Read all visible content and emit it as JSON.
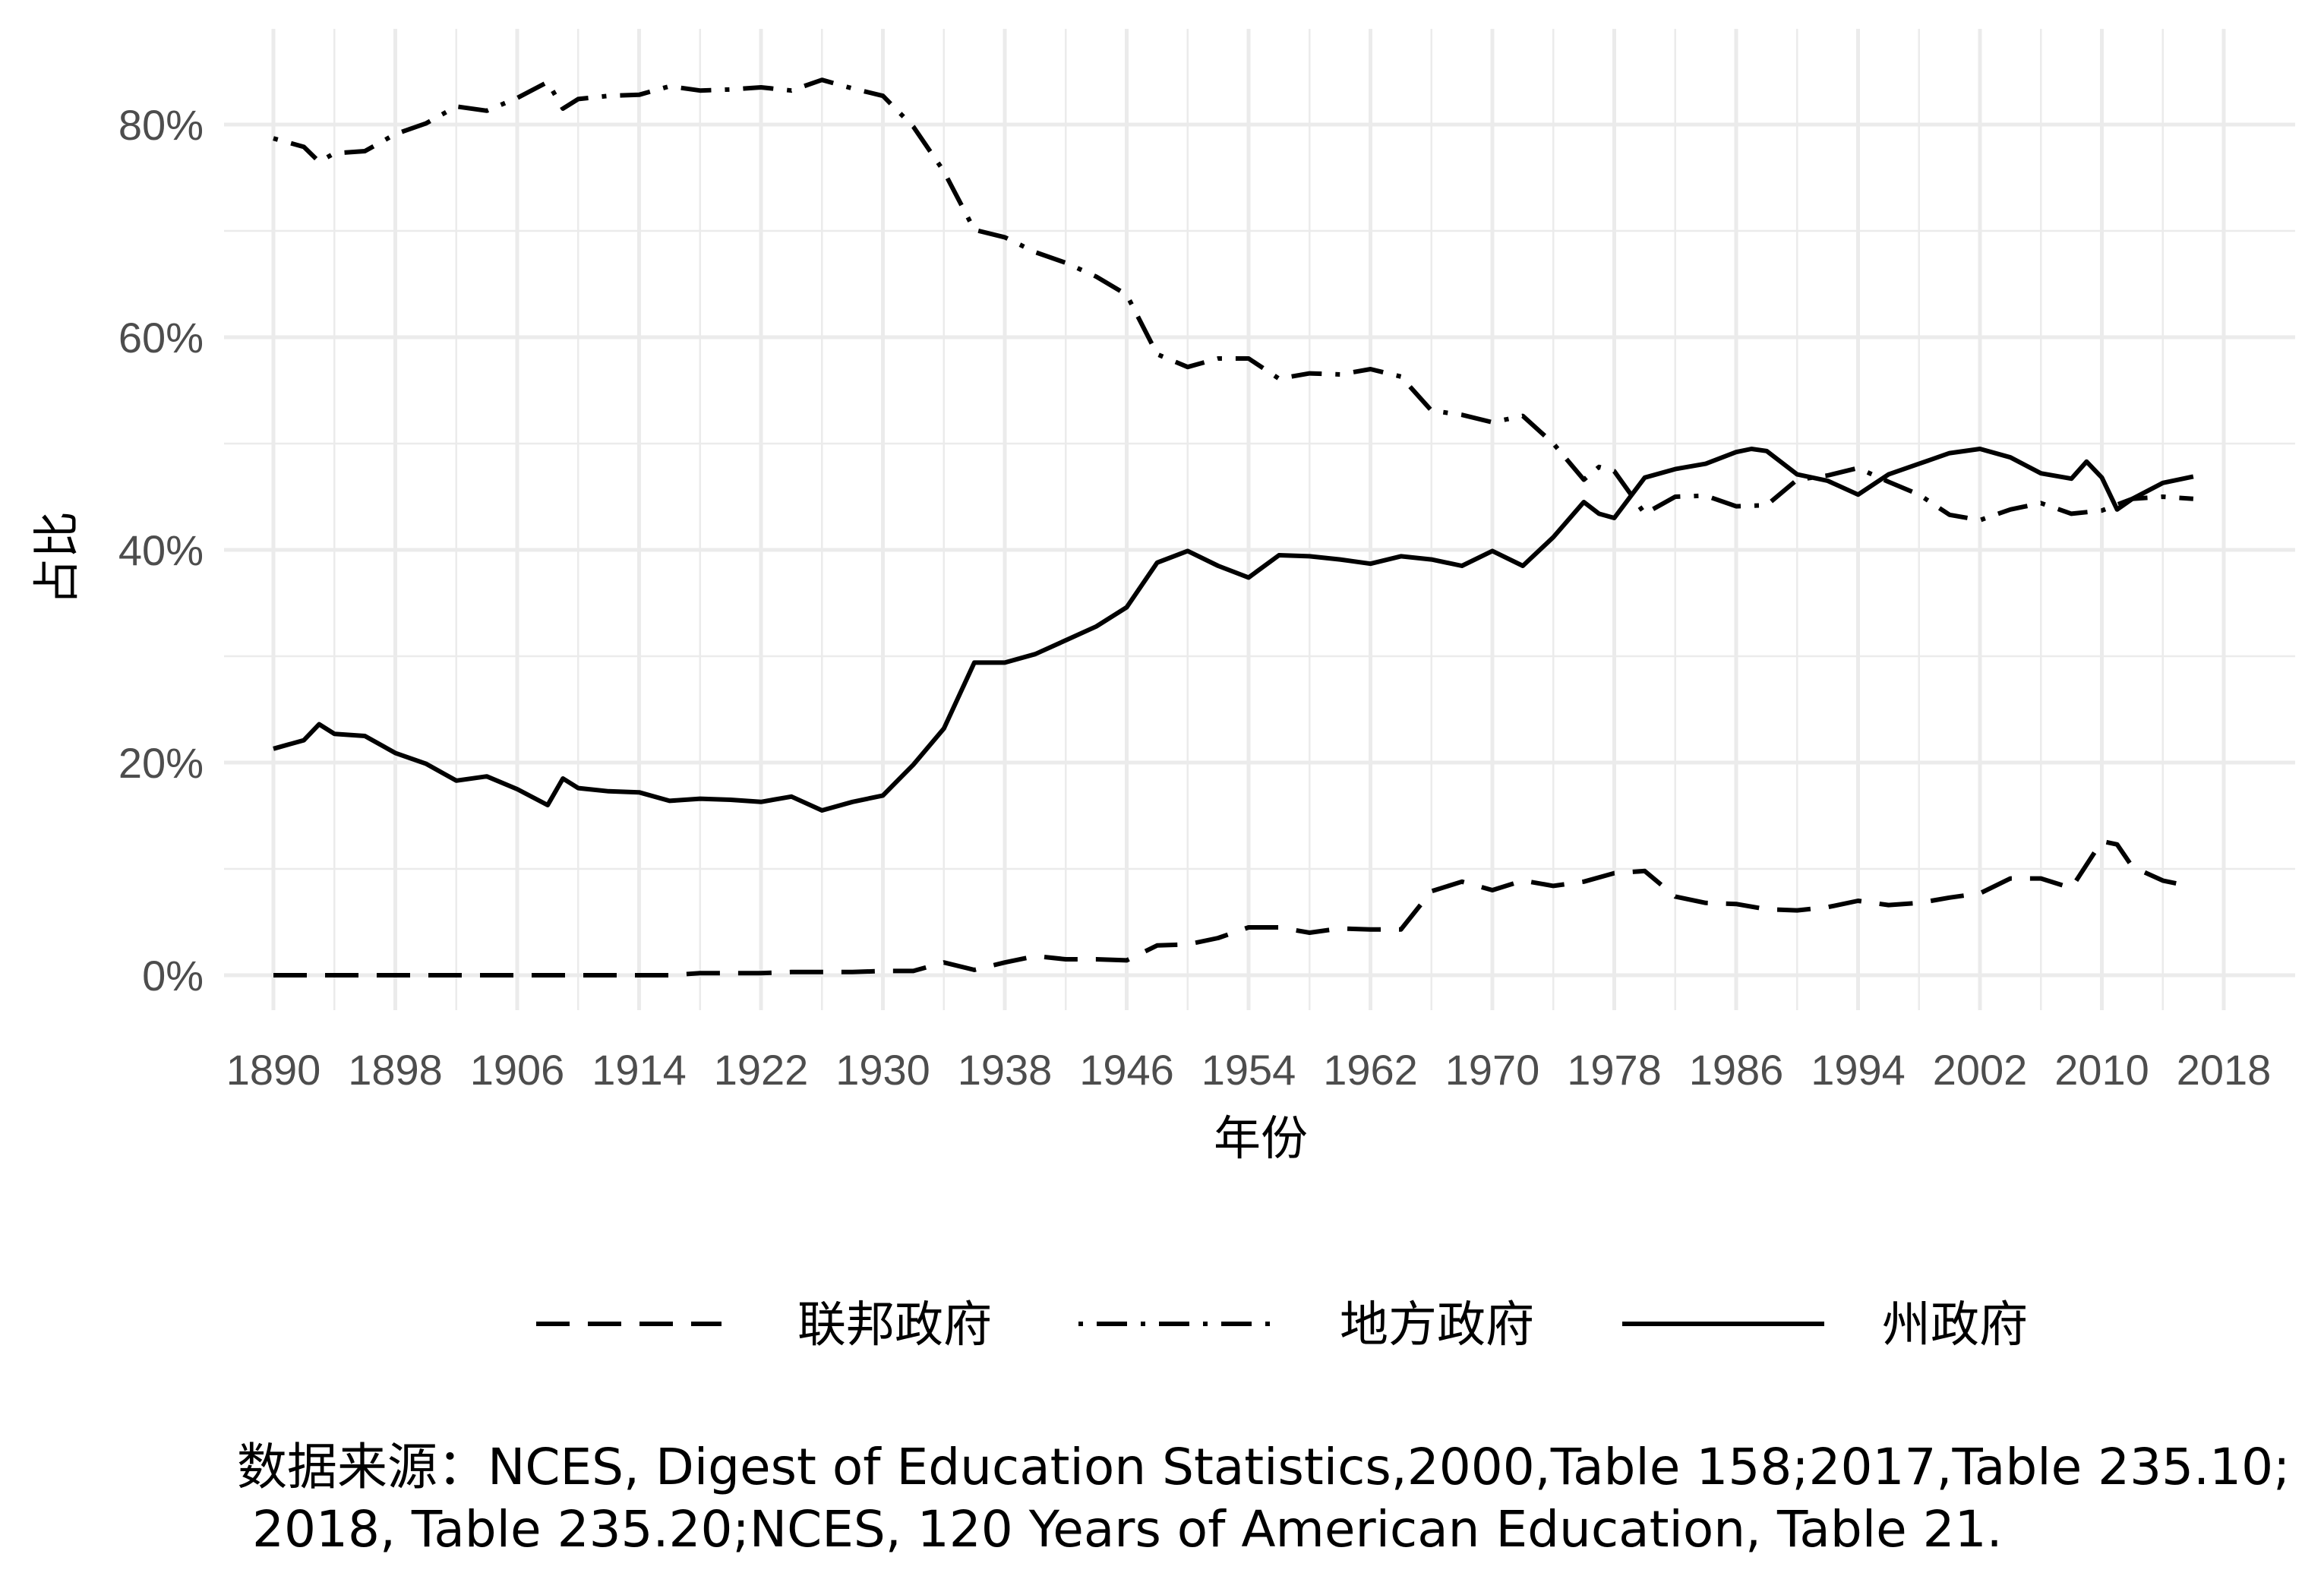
{
  "chart_data": {
    "type": "line",
    "title": "",
    "xlabel": "年份",
    "ylabel": "占比",
    "xlim": [
      1890,
      2016
    ],
    "ylim": [
      0,
      0.8
    ],
    "x_ticks": [
      "1890",
      "1898",
      "1906",
      "1914",
      "1922",
      "1930",
      "1938",
      "1946",
      "1954",
      "1962",
      "1970",
      "1978",
      "1986",
      "1994",
      "2002",
      "2010",
      "2018"
    ],
    "y_ticks": [
      "0%",
      "20%",
      "40%",
      "60%",
      "80%"
    ],
    "legend_position": "bottom",
    "grid": true,
    "series": [
      {
        "name": "联邦政府",
        "linestyle": "dashed",
        "points": [
          [
            1890,
            0.0
          ],
          [
            1892,
            0.0
          ],
          [
            1894,
            0.0
          ],
          [
            1896,
            0.0
          ],
          [
            1898,
            0.0
          ],
          [
            1900,
            0.0
          ],
          [
            1902,
            0.0
          ],
          [
            1904,
            0.0
          ],
          [
            1906,
            0.0
          ],
          [
            1908,
            0.0
          ],
          [
            1910,
            0.0
          ],
          [
            1912,
            0.0
          ],
          [
            1914,
            0.0
          ],
          [
            1916,
            0.0
          ],
          [
            1918,
            0.002
          ],
          [
            1920,
            0.002
          ],
          [
            1922,
            0.002
          ],
          [
            1924,
            0.003
          ],
          [
            1926,
            0.003
          ],
          [
            1928,
            0.003
          ],
          [
            1930,
            0.004
          ],
          [
            1932,
            0.004
          ],
          [
            1934,
            0.012
          ],
          [
            1936,
            0.005
          ],
          [
            1938,
            0.012
          ],
          [
            1940,
            0.018
          ],
          [
            1942,
            0.015
          ],
          [
            1944,
            0.015
          ],
          [
            1946,
            0.014
          ],
          [
            1948,
            0.028
          ],
          [
            1950,
            0.029
          ],
          [
            1952,
            0.035
          ],
          [
            1954,
            0.045
          ],
          [
            1956,
            0.045
          ],
          [
            1958,
            0.04
          ],
          [
            1960,
            0.044
          ],
          [
            1962,
            0.043
          ],
          [
            1964,
            0.043
          ],
          [
            1966,
            0.079
          ],
          [
            1968,
            0.088
          ],
          [
            1970,
            0.08
          ],
          [
            1972,
            0.089
          ],
          [
            1974,
            0.084
          ],
          [
            1976,
            0.088
          ],
          [
            1978,
            0.096
          ],
          [
            1980,
            0.098
          ],
          [
            1982,
            0.074
          ],
          [
            1984,
            0.068
          ],
          [
            1986,
            0.067
          ],
          [
            1988,
            0.062
          ],
          [
            1990,
            0.061
          ],
          [
            1992,
            0.064
          ],
          [
            1994,
            0.07
          ],
          [
            1996,
            0.066
          ],
          [
            1998,
            0.068
          ],
          [
            2000,
            0.073
          ],
          [
            2002,
            0.077
          ],
          [
            2004,
            0.091
          ],
          [
            2006,
            0.091
          ],
          [
            2008,
            0.082
          ],
          [
            2010,
            0.126
          ],
          [
            2011,
            0.123
          ],
          [
            2012,
            0.102
          ],
          [
            2014,
            0.089
          ],
          [
            2016,
            0.083
          ]
        ]
      },
      {
        "name": "地方政府",
        "linestyle": "dotdash",
        "points": [
          [
            1890,
            0.787
          ],
          [
            1892,
            0.779
          ],
          [
            1893,
            0.765
          ],
          [
            1894,
            0.773
          ],
          [
            1896,
            0.775
          ],
          [
            1898,
            0.791
          ],
          [
            1900,
            0.801
          ],
          [
            1902,
            0.817
          ],
          [
            1904,
            0.813
          ],
          [
            1906,
            0.825
          ],
          [
            1908,
            0.84
          ],
          [
            1909,
            0.815
          ],
          [
            1910,
            0.824
          ],
          [
            1912,
            0.827
          ],
          [
            1914,
            0.828
          ],
          [
            1916,
            0.836
          ],
          [
            1918,
            0.832
          ],
          [
            1920,
            0.833
          ],
          [
            1922,
            0.835
          ],
          [
            1924,
            0.832
          ],
          [
            1926,
            0.842
          ],
          [
            1928,
            0.834
          ],
          [
            1930,
            0.827
          ],
          [
            1932,
            0.798
          ],
          [
            1934,
            0.756
          ],
          [
            1936,
            0.701
          ],
          [
            1938,
            0.694
          ],
          [
            1940,
            0.68
          ],
          [
            1942,
            0.67
          ],
          [
            1944,
            0.657
          ],
          [
            1946,
            0.64
          ],
          [
            1948,
            0.584
          ],
          [
            1950,
            0.572
          ],
          [
            1952,
            0.58
          ],
          [
            1954,
            0.58
          ],
          [
            1956,
            0.561
          ],
          [
            1958,
            0.566
          ],
          [
            1960,
            0.565
          ],
          [
            1962,
            0.57
          ],
          [
            1964,
            0.563
          ],
          [
            1966,
            0.531
          ],
          [
            1968,
            0.527
          ],
          [
            1970,
            0.52
          ],
          [
            1972,
            0.526
          ],
          [
            1974,
            0.5
          ],
          [
            1976,
            0.466
          ],
          [
            1977,
            0.478
          ],
          [
            1978,
            0.474
          ],
          [
            1980,
            0.434
          ],
          [
            1982,
            0.45
          ],
          [
            1984,
            0.451
          ],
          [
            1986,
            0.441
          ],
          [
            1988,
            0.442
          ],
          [
            1990,
            0.466
          ],
          [
            1992,
            0.47
          ],
          [
            1994,
            0.477
          ],
          [
            1996,
            0.464
          ],
          [
            1998,
            0.452
          ],
          [
            2000,
            0.433
          ],
          [
            2002,
            0.428
          ],
          [
            2004,
            0.438
          ],
          [
            2006,
            0.444
          ],
          [
            2008,
            0.434
          ],
          [
            2010,
            0.437
          ],
          [
            2012,
            0.448
          ],
          [
            2014,
            0.45
          ],
          [
            2016,
            0.448
          ]
        ]
      },
      {
        "name": "州政府",
        "linestyle": "solid",
        "points": [
          [
            1890,
            0.213
          ],
          [
            1892,
            0.221
          ],
          [
            1893,
            0.236
          ],
          [
            1894,
            0.227
          ],
          [
            1896,
            0.225
          ],
          [
            1898,
            0.209
          ],
          [
            1900,
            0.199
          ],
          [
            1902,
            0.183
          ],
          [
            1904,
            0.187
          ],
          [
            1906,
            0.175
          ],
          [
            1908,
            0.16
          ],
          [
            1909,
            0.185
          ],
          [
            1910,
            0.176
          ],
          [
            1912,
            0.173
          ],
          [
            1914,
            0.172
          ],
          [
            1916,
            0.164
          ],
          [
            1918,
            0.166
          ],
          [
            1920,
            0.165
          ],
          [
            1922,
            0.163
          ],
          [
            1924,
            0.168
          ],
          [
            1926,
            0.155
          ],
          [
            1928,
            0.163
          ],
          [
            1930,
            0.169
          ],
          [
            1932,
            0.198
          ],
          [
            1934,
            0.232
          ],
          [
            1936,
            0.294
          ],
          [
            1938,
            0.294
          ],
          [
            1940,
            0.302
          ],
          [
            1942,
            0.315
          ],
          [
            1944,
            0.328
          ],
          [
            1946,
            0.346
          ],
          [
            1948,
            0.388
          ],
          [
            1950,
            0.399
          ],
          [
            1952,
            0.385
          ],
          [
            1954,
            0.374
          ],
          [
            1956,
            0.395
          ],
          [
            1958,
            0.394
          ],
          [
            1960,
            0.391
          ],
          [
            1962,
            0.387
          ],
          [
            1964,
            0.394
          ],
          [
            1966,
            0.391
          ],
          [
            1968,
            0.385
          ],
          [
            1970,
            0.399
          ],
          [
            1972,
            0.385
          ],
          [
            1974,
            0.412
          ],
          [
            1976,
            0.445
          ],
          [
            1977,
            0.434
          ],
          [
            1978,
            0.43
          ],
          [
            1980,
            0.468
          ],
          [
            1982,
            0.476
          ],
          [
            1984,
            0.481
          ],
          [
            1986,
            0.492
          ],
          [
            1987,
            0.495
          ],
          [
            1988,
            0.493
          ],
          [
            1990,
            0.471
          ],
          [
            1992,
            0.465
          ],
          [
            1994,
            0.452
          ],
          [
            1996,
            0.471
          ],
          [
            1998,
            0.481
          ],
          [
            2000,
            0.491
          ],
          [
            2002,
            0.495
          ],
          [
            2004,
            0.487
          ],
          [
            2006,
            0.472
          ],
          [
            2008,
            0.467
          ],
          [
            2009,
            0.483
          ],
          [
            2010,
            0.468
          ],
          [
            2011,
            0.438
          ],
          [
            2012,
            0.448
          ],
          [
            2014,
            0.463
          ],
          [
            2016,
            0.469
          ]
        ]
      }
    ]
  },
  "caption": {
    "line1": "数据来源：NCES, Digest of Education Statistics,2000,Table 158;2017,Table 235.10;",
    "line2": "2018, Table 235.20;NCES, 120 Years of American Education, Table 21."
  }
}
